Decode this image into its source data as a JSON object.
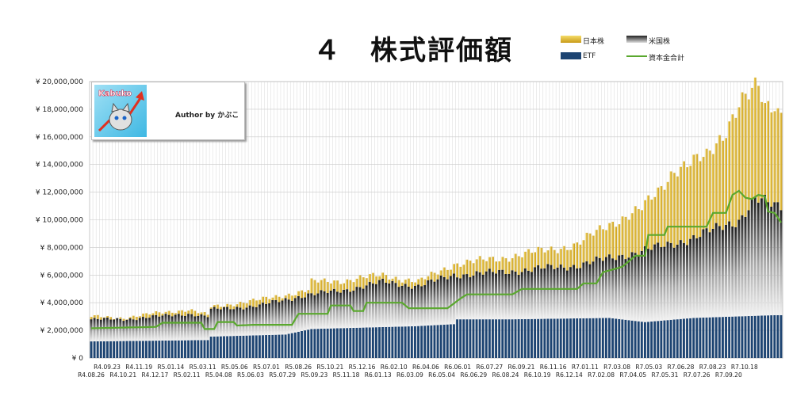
{
  "title": "４　株式評価額",
  "legend": [
    {
      "label": "日本株",
      "color": "#e7c43f"
    },
    {
      "label": "米国株",
      "color": "#7a7a7a"
    },
    {
      "label": "ETF",
      "color": "#1d4472"
    },
    {
      "label": "資本金合計",
      "color": "#5aa82e"
    }
  ],
  "author": "Author by かぶこ",
  "logo_text": "Kabuko",
  "chart_data": {
    "type": "bar",
    "stacked": true,
    "y_ticks": [
      "¥ 0",
      "¥ 2,000,000",
      "¥ 4,000,000",
      "¥ 6,000,000",
      "¥ 8,000,000",
      "¥ 10,000,000",
      "¥ 12,000,000",
      "¥ 14,000,000",
      "¥ 16,000,000",
      "¥ 18,000,000",
      "¥ 20,000,000"
    ],
    "ylim": [
      0,
      20000000
    ],
    "x_labels_row1": [
      "R4.09.23",
      "R4.11.19",
      "R5.01.14",
      "R5.03.11",
      "R5.05.06",
      "R5.07.01",
      "R5.08.26",
      "R5.10.21",
      "R5.12.16",
      "R6.02.10",
      "R6.04.06",
      "R6.06.01",
      "R6.07.27",
      "R6.09.21",
      "R6.11.16",
      "R7.01.11",
      "R7.03.08",
      "R7.05.03",
      "R7.06.28",
      "R7.08.23",
      "R7.10.18"
    ],
    "x_labels_row2": [
      "R4.08.26",
      "R4.10.21",
      "R4.12.17",
      "R5.02.11",
      "R5.04.08",
      "R5.06.03",
      "R5.07.29",
      "R5.09.23",
      "R5.11.18",
      "R6.01.13",
      "R6.03.09",
      "R6.05.04",
      "R6.06.29",
      "R6.08.24",
      "R6.10.19",
      "R6.12.14",
      "R7.02.08",
      "R7.04.05",
      "R7.05.31",
      "R7.07.26",
      "R7.09.20"
    ],
    "series_anchors": {
      "etf": [
        [
          0,
          1200000
        ],
        [
          36,
          1300000
        ],
        [
          37,
          1550000
        ],
        [
          60,
          1700000
        ],
        [
          68,
          2100000
        ],
        [
          100,
          2300000
        ],
        [
          112,
          2450000
        ],
        [
          113,
          2800000
        ],
        [
          130,
          2800000
        ],
        [
          160,
          2900000
        ],
        [
          171,
          2600000
        ],
        [
          186,
          2900000
        ],
        [
          211,
          3100000
        ]
      ],
      "us_top": [
        [
          0,
          2800000
        ],
        [
          10,
          2800000
        ],
        [
          20,
          3000000
        ],
        [
          30,
          3200000
        ],
        [
          36,
          3000000
        ],
        [
          37,
          3500000
        ],
        [
          52,
          3800000
        ],
        [
          67,
          4600000
        ],
        [
          68,
          4600000
        ],
        [
          78,
          4900000
        ],
        [
          90,
          5500000
        ],
        [
          101,
          5200000
        ],
        [
          112,
          6000000
        ],
        [
          126,
          6200000
        ],
        [
          150,
          6700000
        ],
        [
          175,
          8000000
        ],
        [
          186,
          8700000
        ],
        [
          200,
          10000000
        ],
        [
          205,
          11500000
        ],
        [
          211,
          11000000
        ]
      ],
      "jp_top": [
        [
          0,
          3000000
        ],
        [
          10,
          2900000
        ],
        [
          22,
          3300000
        ],
        [
          30,
          3500000
        ],
        [
          36,
          3100000
        ],
        [
          37,
          3700000
        ],
        [
          52,
          4200000
        ],
        [
          67,
          4900000
        ],
        [
          68,
          5500000
        ],
        [
          78,
          5600000
        ],
        [
          90,
          6000000
        ],
        [
          101,
          5500000
        ],
        [
          112,
          6800000
        ],
        [
          126,
          7200000
        ],
        [
          150,
          8200000
        ],
        [
          160,
          9700000
        ],
        [
          170,
          10800000
        ],
        [
          175,
          12000000
        ],
        [
          180,
          13700000
        ],
        [
          190,
          14500000
        ],
        [
          195,
          16200000
        ],
        [
          200,
          18500000
        ],
        [
          206,
          19500000
        ],
        [
          208,
          18000000
        ],
        [
          211,
          18400000
        ],
        [
          212,
          17900000
        ]
      ],
      "capital": [
        [
          0,
          2150000
        ],
        [
          20,
          2250000
        ],
        [
          22,
          2550000
        ],
        [
          34,
          2550000
        ],
        [
          35,
          2100000
        ],
        [
          38,
          2100000
        ],
        [
          39,
          2600000
        ],
        [
          44,
          2600000
        ],
        [
          45,
          2350000
        ],
        [
          50,
          2400000
        ],
        [
          62,
          2400000
        ],
        [
          63,
          2800000
        ],
        [
          64,
          3200000
        ],
        [
          73,
          3200000
        ],
        [
          74,
          3800000
        ],
        [
          80,
          3800000
        ],
        [
          81,
          3400000
        ],
        [
          84,
          3400000
        ],
        [
          85,
          4000000
        ],
        [
          96,
          4000000
        ],
        [
          98,
          3600000
        ],
        [
          110,
          3600000
        ],
        [
          114,
          4300000
        ],
        [
          116,
          4600000
        ],
        [
          130,
          4600000
        ],
        [
          133,
          5000000
        ],
        [
          150,
          5000000
        ],
        [
          152,
          5400000
        ],
        [
          156,
          5400000
        ],
        [
          158,
          6200000
        ],
        [
          164,
          6600000
        ],
        [
          168,
          7400000
        ],
        [
          171,
          7400000
        ],
        [
          172,
          8900000
        ],
        [
          177,
          8900000
        ],
        [
          178,
          9500000
        ],
        [
          190,
          9500000
        ],
        [
          192,
          10500000
        ],
        [
          196,
          10500000
        ],
        [
          198,
          11800000
        ],
        [
          200,
          12100000
        ],
        [
          202,
          11600000
        ],
        [
          204,
          11500000
        ],
        [
          206,
          11800000
        ],
        [
          208,
          11700000
        ],
        [
          209,
          10600000
        ],
        [
          211,
          10500000
        ],
        [
          213,
          9800000
        ]
      ]
    },
    "n_bars": 214
  }
}
